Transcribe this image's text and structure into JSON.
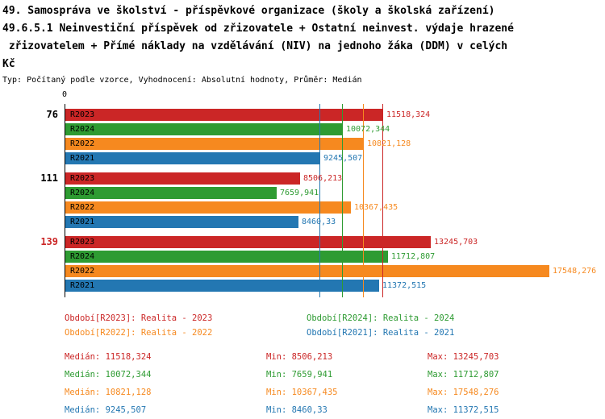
{
  "header": {
    "title_lines": [
      "49. Samospráva ve školství - příspěvkové organizace (školy a školská zařízení)",
      "49.6.5.1 Neinvestiční příspěvek od zřizovatele + Ostatní neinvest. výdaje hrazené",
      " zřizovatelem + Přímé náklady na vzdělávání (NIV) na jednoho žáka (DDM) v celých",
      "Kč"
    ],
    "subtitle": "Typ: Počítaný podle vzorce, Vyhodnocení: Absolutní hodnoty, Průměr: Medián"
  },
  "chart_data": {
    "type": "bar",
    "orientation": "horizontal",
    "origin_label": "0",
    "xlim": [
      0,
      17548.276
    ],
    "grid": false,
    "colors": {
      "R2023": "#cb2626",
      "R2024": "#2e9b32",
      "R2022": "#f6891f",
      "R2021": "#2377b2"
    },
    "groups": [
      {
        "label": "76",
        "label_color": "#000000",
        "bars": [
          {
            "period": "R2023",
            "value": 11518.324,
            "value_label": "11518,324"
          },
          {
            "period": "R2024",
            "value": 10072.344,
            "value_label": "10072,344"
          },
          {
            "period": "R2022",
            "value": 10821.128,
            "value_label": "10821,128"
          },
          {
            "period": "R2021",
            "value": 9245.507,
            "value_label": "9245,507"
          }
        ]
      },
      {
        "label": "111",
        "label_color": "#000000",
        "bars": [
          {
            "period": "R2023",
            "value": 8506.213,
            "value_label": "8506,213"
          },
          {
            "period": "R2024",
            "value": 7659.941,
            "value_label": "7659,941"
          },
          {
            "period": "R2022",
            "value": 10367.435,
            "value_label": "10367,435"
          },
          {
            "period": "R2021",
            "value": 8460.33,
            "value_label": "8460,33"
          }
        ]
      },
      {
        "label": "139",
        "label_color": "#cb2626",
        "bars": [
          {
            "period": "R2023",
            "value": 13245.703,
            "value_label": "13245,703"
          },
          {
            "period": "R2024",
            "value": 11712.807,
            "value_label": "11712,807"
          },
          {
            "period": "R2022",
            "value": 17548.276,
            "value_label": "17548,276"
          },
          {
            "period": "R2021",
            "value": 11372.515,
            "value_label": "11372,515"
          }
        ]
      }
    ],
    "median_lines": [
      {
        "period": "R2021",
        "value": 9245.507
      },
      {
        "period": "R2024",
        "value": 10072.344
      },
      {
        "period": "R2022",
        "value": 10821.128
      },
      {
        "period": "R2023",
        "value": 11518.324
      }
    ],
    "legend": [
      {
        "period": "R2023",
        "text": "Období[R2023]: Realita - 2023"
      },
      {
        "period": "R2024",
        "text": "Období[R2024]: Realita - 2024"
      },
      {
        "period": "R2022",
        "text": "Období[R2022]: Realita - 2022"
      },
      {
        "period": "R2021",
        "text": "Období[R2021]: Realita - 2021"
      }
    ],
    "stats": [
      {
        "period": "R2023",
        "median": "Medián: 11518,324",
        "min": "Min: 8506,213",
        "max": "Max: 13245,703"
      },
      {
        "period": "R2024",
        "median": "Medián: 10072,344",
        "min": "Min: 7659,941",
        "max": "Max: 11712,807"
      },
      {
        "period": "R2022",
        "median": "Medián: 10821,128",
        "min": "Min: 10367,435",
        "max": "Max: 17548,276"
      },
      {
        "period": "R2021",
        "median": "Medián: 9245,507",
        "min": "Min: 8460,33",
        "max": "Max: 11372,515"
      }
    ]
  }
}
